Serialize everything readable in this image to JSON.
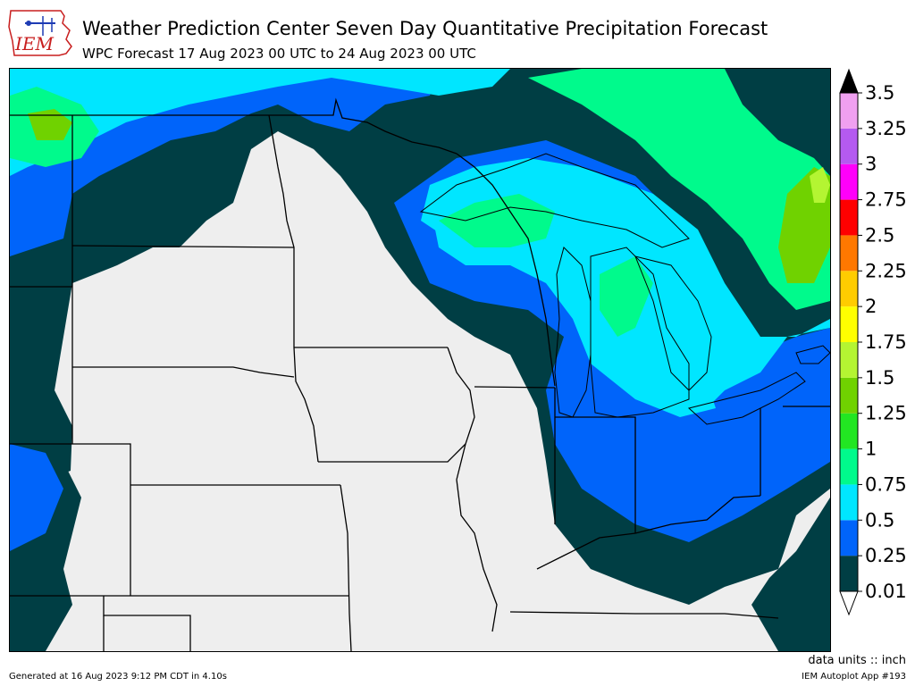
{
  "header": {
    "logo_text": "IEM",
    "title": "Weather Prediction Center Seven Day Quantitative Precipitation Forecast",
    "subtitle": "WPC Forecast 17 Aug 2023 00 UTC to 24 Aug 2023 00 UTC"
  },
  "colorbar": {
    "levels": [
      "0.01",
      "0.25",
      "0.5",
      "0.75",
      "1",
      "1.25",
      "1.5",
      "1.75",
      "2",
      "2.25",
      "2.5",
      "2.75",
      "3",
      "3.25",
      "3.5"
    ],
    "colors": [
      "#003e44",
      "#0064fa",
      "#00e6ff",
      "#00fa8c",
      "#22e622",
      "#70d200",
      "#b4f532",
      "#ffff00",
      "#ffcc00",
      "#ff7800",
      "#ff0000",
      "#ff00fa",
      "#b45af0",
      "#f0a0f0"
    ],
    "under_color": "#ffffff",
    "over_color": "#000000"
  },
  "map": {
    "background_color": "#eeeeee",
    "border_color": "#000000"
  },
  "footer": {
    "units": "data units :: inch",
    "generated": "Generated at 16 Aug 2023 9:12 PM CDT in 4.10s",
    "app": "IEM Autoplot App #193"
  }
}
